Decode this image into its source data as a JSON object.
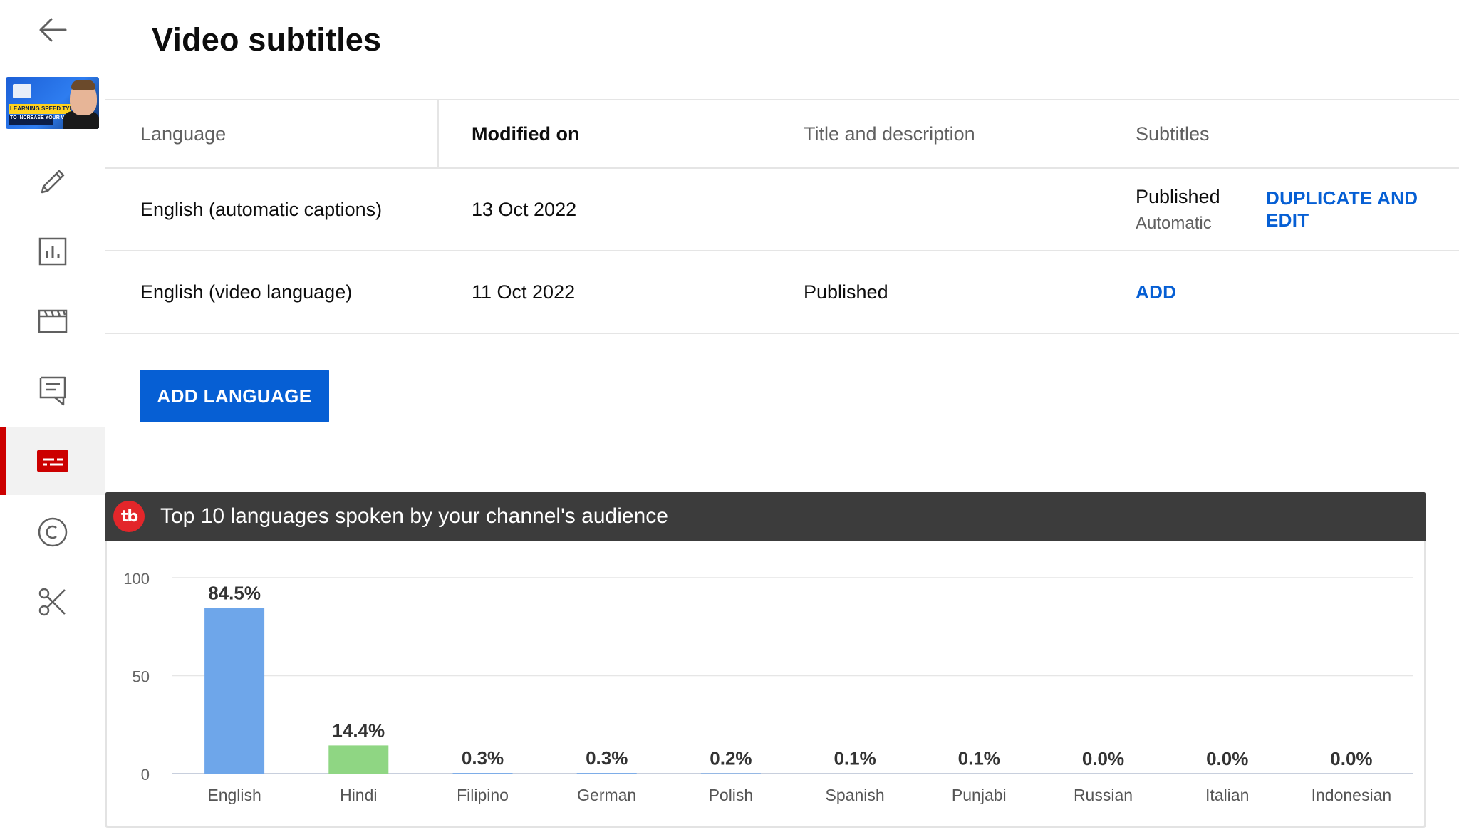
{
  "page": {
    "title": "Video subtitles"
  },
  "sidebar": {
    "items": [
      {
        "name": "back-arrow-icon"
      },
      {
        "name": "video-thumbnail",
        "thumbnail_text": "LEARNING SPEED TYPING",
        "thumbnail_subtext": "TO INCREASE YOUR WPM STATS"
      },
      {
        "name": "pencil-icon"
      },
      {
        "name": "analytics-icon"
      },
      {
        "name": "editor-clapper-icon"
      },
      {
        "name": "comments-icon"
      },
      {
        "name": "subtitles-icon",
        "active": true
      },
      {
        "name": "copyright-icon"
      },
      {
        "name": "clips-scissors-icon"
      }
    ],
    "accent_color": "#cc0000"
  },
  "table": {
    "headers": {
      "language": "Language",
      "modified": "Modified on",
      "title_desc": "Title and description",
      "subtitles": "Subtitles"
    },
    "rows": [
      {
        "language": "English (automatic captions)",
        "modified": "13 Oct 2022",
        "title_desc": "",
        "subtitles": "Published",
        "subtitles_sub": "Automatic",
        "action": "DUPLICATE AND EDIT"
      },
      {
        "language": "English (video language)",
        "modified": "11 Oct 2022",
        "title_desc": "Published",
        "subtitles": "ADD",
        "action": ""
      }
    ]
  },
  "buttons": {
    "add_language": "ADD LANGUAGE"
  },
  "panel": {
    "logo_text": "tb",
    "title": "Top 10 languages spoken by your channel's audience"
  },
  "chart_data": {
    "type": "bar",
    "title": "Top 10 languages spoken by your channel's audience",
    "categories": [
      "English",
      "Hindi",
      "Filipino",
      "German",
      "Polish",
      "Spanish",
      "Punjabi",
      "Russian",
      "Italian",
      "Indonesian"
    ],
    "values": [
      84.5,
      14.4,
      0.3,
      0.3,
      0.2,
      0.1,
      0.1,
      0.0,
      0.0,
      0.0
    ],
    "value_labels": [
      "84.5%",
      "14.4%",
      "0.3%",
      "0.3%",
      "0.2%",
      "0.1%",
      "0.1%",
      "0.0%",
      "0.0%",
      "0.0%"
    ],
    "colors": [
      "#6ea6ea",
      "#8fd683",
      "#6ea6ea",
      "#6ea6ea",
      "#6ea6ea",
      "#6ea6ea",
      "#6ea6ea",
      "#6ea6ea",
      "#6ea6ea",
      "#6ea6ea"
    ],
    "ylim": [
      0,
      100
    ],
    "yticks": [
      0,
      50,
      100
    ],
    "grid": true,
    "xlabel": "",
    "ylabel": ""
  }
}
